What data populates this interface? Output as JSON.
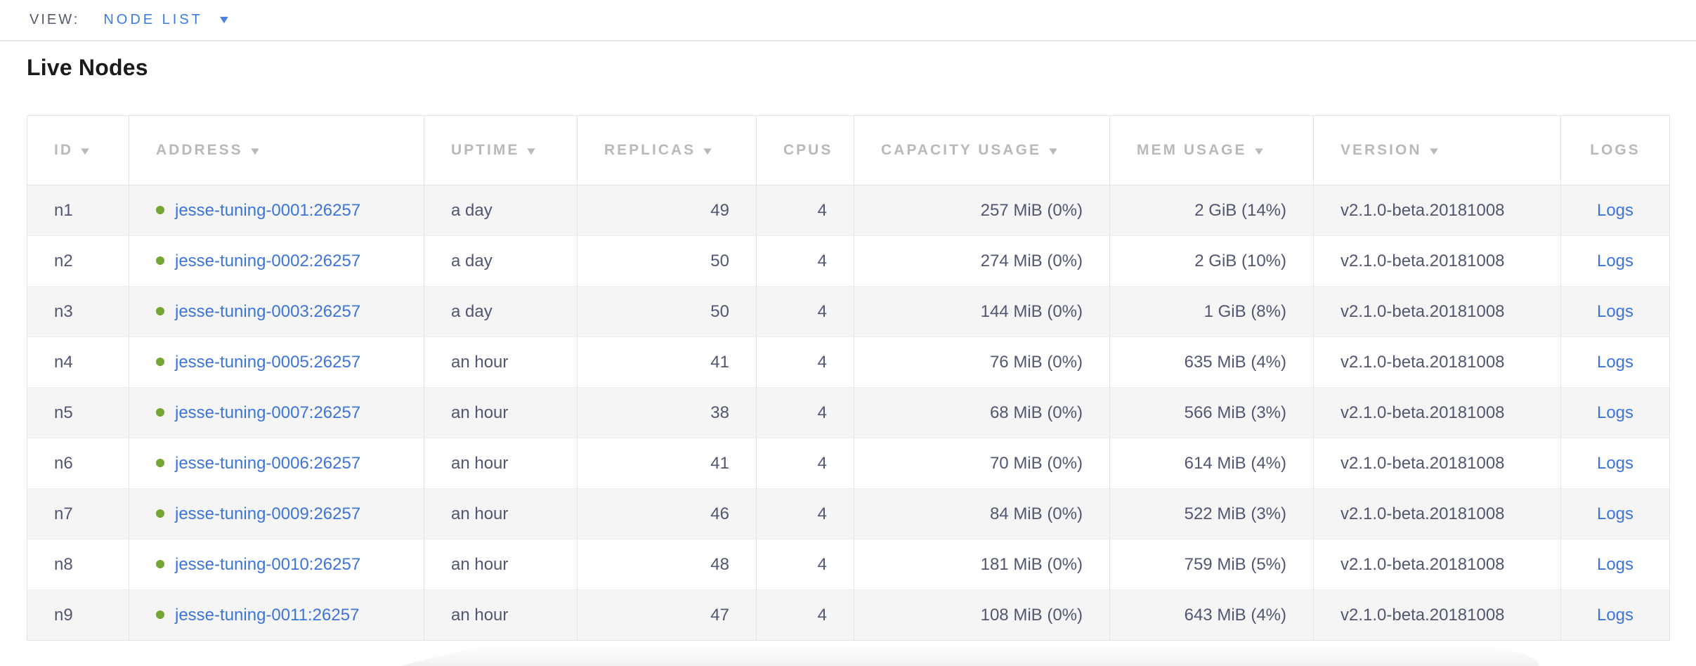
{
  "view_bar": {
    "label": "VIEW:",
    "selected": "NODE LIST",
    "caret_icon": "▼"
  },
  "page": {
    "title": "Live Nodes"
  },
  "table": {
    "columns": [
      {
        "key": "id",
        "label": "ID",
        "sortable": true,
        "align": "left"
      },
      {
        "key": "address",
        "label": "ADDRESS",
        "sortable": true,
        "align": "left"
      },
      {
        "key": "uptime",
        "label": "UPTIME",
        "sortable": true,
        "align": "left"
      },
      {
        "key": "replicas",
        "label": "REPLICAS",
        "sortable": true,
        "align": "right"
      },
      {
        "key": "cpus",
        "label": "CPUS",
        "sortable": false,
        "align": "right"
      },
      {
        "key": "capacity",
        "label": "CAPACITY USAGE",
        "sortable": true,
        "align": "right"
      },
      {
        "key": "mem",
        "label": "MEM USAGE",
        "sortable": true,
        "align": "right"
      },
      {
        "key": "version",
        "label": "VERSION",
        "sortable": true,
        "align": "left"
      },
      {
        "key": "logs",
        "label": "LOGS",
        "sortable": false,
        "align": "center"
      }
    ],
    "rows": [
      {
        "id": "n1",
        "address": "jesse-tuning-0001:26257",
        "uptime": "a day",
        "replicas": "49",
        "cpus": "4",
        "capacity": "257 MiB (0%)",
        "mem": "2 GiB (14%)",
        "version": "v2.1.0-beta.20181008",
        "logs": "Logs"
      },
      {
        "id": "n2",
        "address": "jesse-tuning-0002:26257",
        "uptime": "a day",
        "replicas": "50",
        "cpus": "4",
        "capacity": "274 MiB (0%)",
        "mem": "2 GiB (10%)",
        "version": "v2.1.0-beta.20181008",
        "logs": "Logs"
      },
      {
        "id": "n3",
        "address": "jesse-tuning-0003:26257",
        "uptime": "a day",
        "replicas": "50",
        "cpus": "4",
        "capacity": "144 MiB (0%)",
        "mem": "1 GiB (8%)",
        "version": "v2.1.0-beta.20181008",
        "logs": "Logs"
      },
      {
        "id": "n4",
        "address": "jesse-tuning-0005:26257",
        "uptime": "an hour",
        "replicas": "41",
        "cpus": "4",
        "capacity": "76 MiB (0%)",
        "mem": "635 MiB (4%)",
        "version": "v2.1.0-beta.20181008",
        "logs": "Logs"
      },
      {
        "id": "n5",
        "address": "jesse-tuning-0007:26257",
        "uptime": "an hour",
        "replicas": "38",
        "cpus": "4",
        "capacity": "68 MiB (0%)",
        "mem": "566 MiB (3%)",
        "version": "v2.1.0-beta.20181008",
        "logs": "Logs"
      },
      {
        "id": "n6",
        "address": "jesse-tuning-0006:26257",
        "uptime": "an hour",
        "replicas": "41",
        "cpus": "4",
        "capacity": "70 MiB (0%)",
        "mem": "614 MiB (4%)",
        "version": "v2.1.0-beta.20181008",
        "logs": "Logs"
      },
      {
        "id": "n7",
        "address": "jesse-tuning-0009:26257",
        "uptime": "an hour",
        "replicas": "46",
        "cpus": "4",
        "capacity": "84 MiB (0%)",
        "mem": "522 MiB (3%)",
        "version": "v2.1.0-beta.20181008",
        "logs": "Logs"
      },
      {
        "id": "n8",
        "address": "jesse-tuning-0010:26257",
        "uptime": "an hour",
        "replicas": "48",
        "cpus": "4",
        "capacity": "181 MiB (0%)",
        "mem": "759 MiB (5%)",
        "version": "v2.1.0-beta.20181008",
        "logs": "Logs"
      },
      {
        "id": "n9",
        "address": "jesse-tuning-0011:26257",
        "uptime": "an hour",
        "replicas": "47",
        "cpus": "4",
        "capacity": "108 MiB (0%)",
        "mem": "643 MiB (4%)",
        "version": "v2.1.0-beta.20181008",
        "logs": "Logs"
      }
    ],
    "sort_caret_icon": "▼",
    "node_status": "live"
  },
  "colors": {
    "link_blue": "#3d74d8",
    "selector_blue": "#3a7ce0",
    "status_green": "#74a435",
    "header_gray": "#b7b9bc",
    "cell_text": "#515770",
    "row_stripe": "#f5f5f6",
    "border": "#e2e3e5"
  }
}
